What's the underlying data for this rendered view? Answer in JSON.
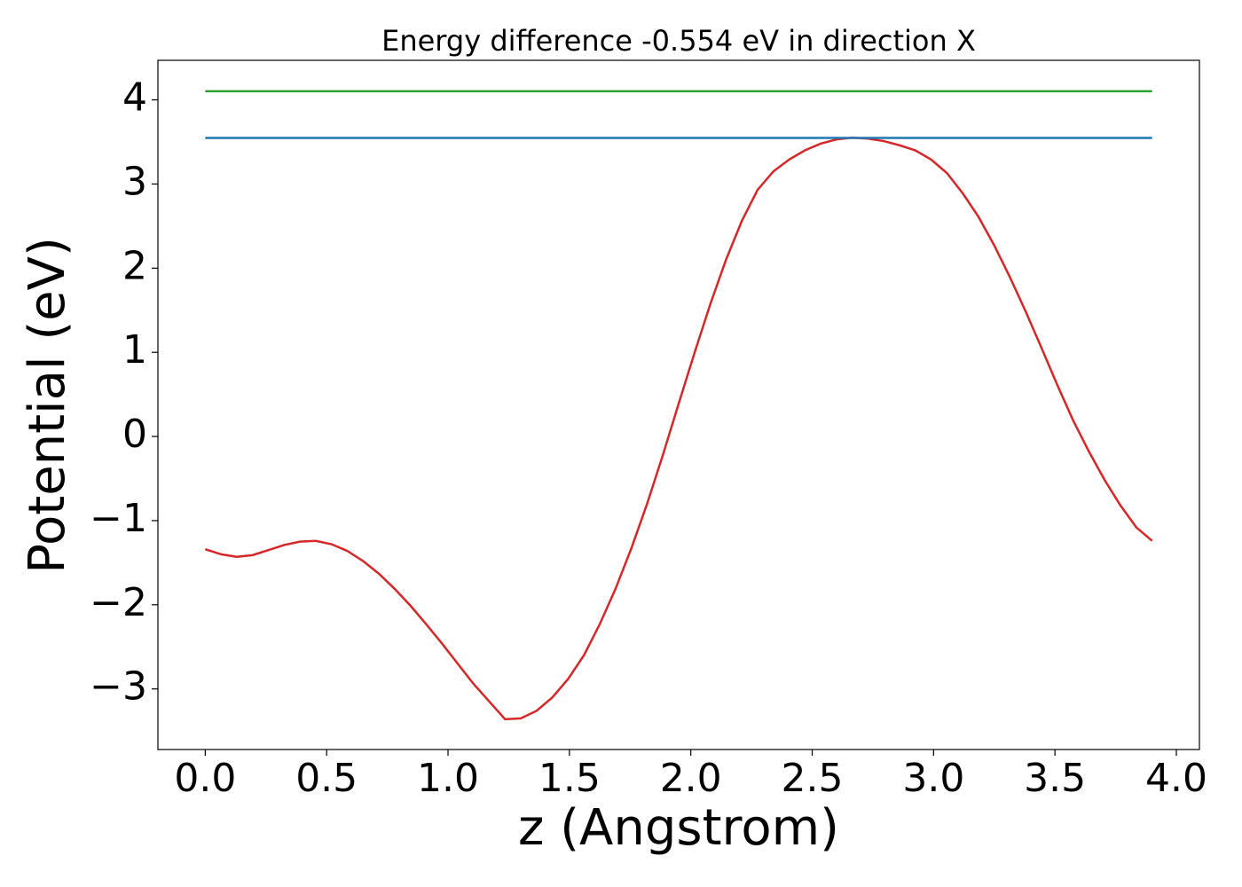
{
  "chart_data": {
    "type": "line",
    "title": "Energy difference -0.554 eV in direction X",
    "x_label": "z (Angstrom)",
    "y_label": "Potential (eV)",
    "series": [
      {
        "color": "#d62728",
        "x": [
          0,
          0.065,
          0.13,
          0.195,
          0.26,
          0.325,
          0.39,
          0.455,
          0.52,
          0.585,
          0.65,
          0.715,
          0.78,
          0.845,
          0.91,
          0.975,
          1.04,
          1.105,
          1.17,
          1.235,
          1.3,
          1.365,
          1.43,
          1.495,
          1.56,
          1.625,
          1.69,
          1.755,
          1.82,
          1.885,
          1.95,
          2.015,
          2.08,
          2.145,
          2.21,
          2.275,
          2.34,
          2.405,
          2.47,
          2.535,
          2.6,
          2.665,
          2.73,
          2.795,
          2.86,
          2.925,
          2.99,
          3.055,
          3.12,
          3.185,
          3.25,
          3.315,
          3.38,
          3.445,
          3.51,
          3.575,
          3.64,
          3.705,
          3.77,
          3.835,
          3.9
        ],
        "values": [
          -1.34,
          -1.4,
          -1.43,
          -1.41,
          -1.35,
          -1.29,
          -1.25,
          -1.24,
          -1.28,
          -1.36,
          -1.48,
          -1.63,
          -1.81,
          -2.01,
          -2.23,
          -2.46,
          -2.7,
          -2.94,
          -3.15,
          -3.36,
          -3.35,
          -3.26,
          -3.1,
          -2.88,
          -2.6,
          -2.23,
          -1.81,
          -1.33,
          -0.8,
          -0.22,
          0.39,
          0.99,
          1.57,
          2.1,
          2.56,
          2.93,
          3.15,
          3.29,
          3.4,
          3.48,
          3.53,
          3.55,
          3.54,
          3.51,
          3.46,
          3.4,
          3.29,
          3.13,
          2.89,
          2.61,
          2.27,
          1.89,
          1.48,
          1.05,
          0.61,
          0.19,
          -0.18,
          -0.52,
          -0.82,
          -1.08,
          -1.24
        ]
      },
      {
        "color": "#1f77b4",
        "x": [
          0,
          3.9
        ],
        "values": [
          3.548,
          3.548
        ]
      },
      {
        "color": "#2ca02c",
        "x": [
          0,
          3.9
        ],
        "values": [
          4.102,
          4.102
        ]
      }
    ],
    "xlim": [
      -0.195,
      4.095
    ],
    "ylim": [
      -3.72,
      4.47
    ],
    "xticks": [
      {
        "value": 0,
        "label": "0.0"
      },
      0.5,
      {
        "value": 1,
        "label": "1.0"
      },
      1.5,
      {
        "value": 2,
        "label": "2.0"
      },
      2.5,
      {
        "value": 3,
        "label": "3.0"
      },
      3.5,
      {
        "value": 4,
        "label": "4.0"
      }
    ],
    "yticks": [
      {
        "value": -3,
        "label": "−3"
      },
      {
        "value": -2,
        "label": "−2"
      },
      {
        "value": -1,
        "label": "−1"
      },
      0,
      1,
      2,
      3,
      4
    ]
  }
}
